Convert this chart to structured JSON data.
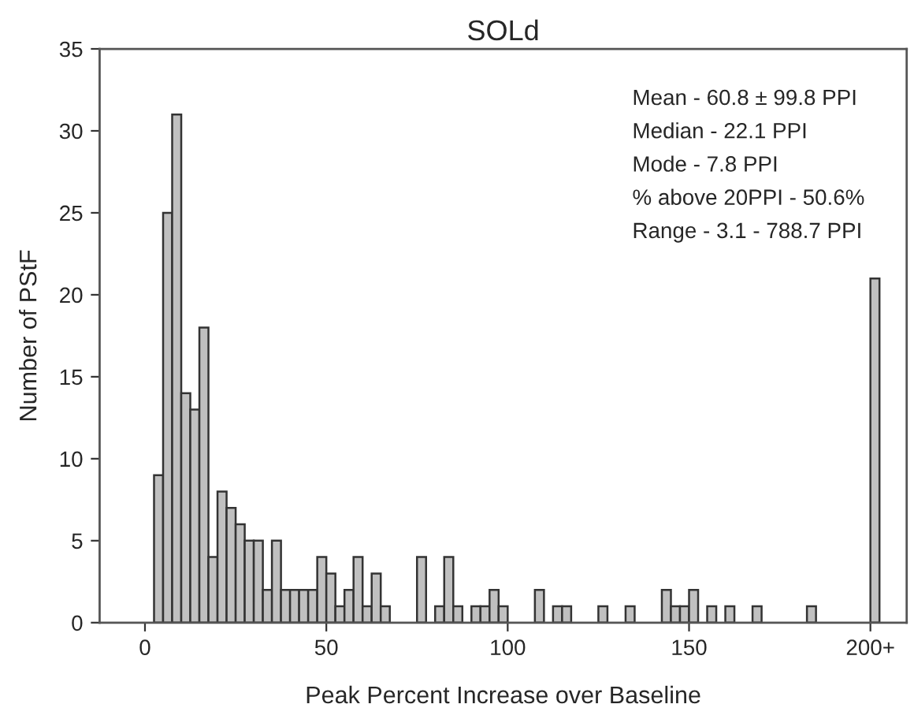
{
  "chart_data": {
    "type": "histogram",
    "title": "SOLd",
    "xlabel": "Peak Percent Increase over Baseline",
    "ylabel": "Number of PStF",
    "bins": [
      2.5,
      5,
      7.5,
      10,
      12.5,
      15,
      17.5,
      20,
      22.5,
      25,
      27.5,
      30,
      32.5,
      35,
      37.5,
      40,
      42.5,
      45,
      47.5,
      50,
      52.5,
      55,
      57.5,
      60,
      62.5,
      65,
      67.5,
      70,
      72.5,
      75,
      77.5,
      80,
      82.5,
      85,
      87.5,
      90,
      92.5,
      95,
      97.5,
      100,
      102.5,
      105,
      107.5,
      110,
      112.5,
      115,
      117.5,
      120,
      122.5,
      125,
      127.5,
      130,
      132.5,
      135,
      137.5,
      140,
      142.5,
      145,
      147.5,
      150,
      152.5,
      155,
      157.5,
      160,
      162.5,
      165,
      167.5,
      170,
      172.5,
      175,
      177.5,
      180,
      182.5,
      185,
      187.5,
      190,
      192.5,
      195,
      197.5,
      200,
      202.5
    ],
    "values": [
      9,
      25,
      31,
      14,
      13,
      18,
      4,
      8,
      7,
      6,
      5,
      5,
      2,
      5,
      2,
      2,
      2,
      2,
      4,
      3,
      1,
      2,
      4,
      1,
      3,
      1,
      0,
      0,
      0,
      4,
      0,
      1,
      4,
      1,
      0,
      1,
      1,
      2,
      1,
      0,
      0,
      0,
      2,
      0,
      1,
      1,
      0,
      0,
      0,
      1,
      0,
      0,
      1,
      0,
      0,
      0,
      2,
      1,
      1,
      2,
      0,
      1,
      0,
      1,
      0,
      0,
      1,
      0,
      0,
      0,
      0,
      0,
      1,
      0,
      0,
      0,
      0,
      0,
      0,
      21
    ],
    "color": "#c0c0c0",
    "xlim": [
      -12.5,
      210
    ],
    "xticks": [
      0,
      50,
      100,
      150,
      {
        "value": 200,
        "label": "200+"
      }
    ],
    "ylim": [
      0,
      35
    ],
    "yticks": [
      0,
      5,
      10,
      15,
      20,
      25,
      30,
      35
    ],
    "grid": false,
    "legend": false,
    "annotations": [
      "Mean - 60.8 ± 99.8 PPI",
      "Median - 22.1 PPI",
      "Mode - 7.8 PPI",
      "% above 20PPI - 50.6%",
      "Range - 3.1 - 788.7 PPI"
    ]
  }
}
